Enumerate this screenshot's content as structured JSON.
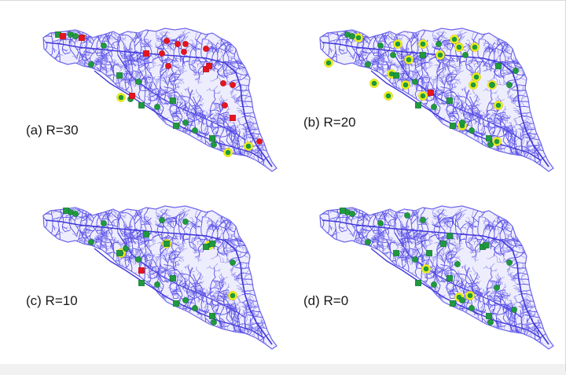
{
  "figure": {
    "colors": {
      "river": "#5a50e6",
      "river_light": "#8f89f0",
      "site": "#1f9a3e",
      "site_dark": "#127230",
      "flagged": "#e8141e",
      "highlight_ring": "#f1ee1b"
    },
    "panels": [
      {
        "id": "a",
        "label": "(a) R=30"
      },
      {
        "id": "b",
        "label": "(b) R=20"
      },
      {
        "id": "c",
        "label": "(c) R=10"
      },
      {
        "id": "d",
        "label": "(d) R=0"
      }
    ]
  }
}
